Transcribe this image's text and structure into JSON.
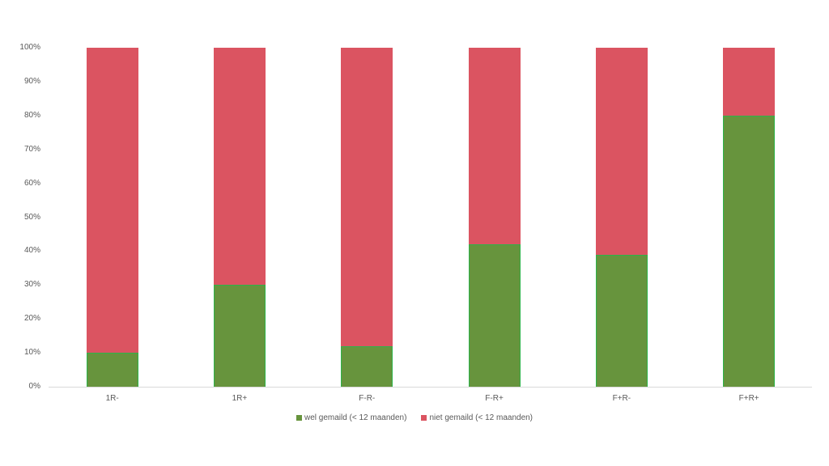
{
  "chart_data": {
    "type": "bar",
    "stacked": true,
    "percent_stacked": true,
    "title": "",
    "xlabel": "",
    "ylabel": "",
    "ylim": [
      0,
      100
    ],
    "y_ticks": [
      "0%",
      "10%",
      "20%",
      "30%",
      "40%",
      "50%",
      "60%",
      "70%",
      "80%",
      "90%",
      "100%"
    ],
    "categories": [
      "1R-",
      "1R+",
      "F-R-",
      "F-R+",
      "F+R-",
      "F+R+"
    ],
    "series": [
      {
        "name": "wel gemaild (< 12 maanden)",
        "color": "#67943d",
        "values": [
          10,
          30,
          12,
          42,
          39,
          80
        ]
      },
      {
        "name": "niet gemaild (< 12 maanden)",
        "color": "#db5461",
        "values": [
          90,
          70,
          88,
          58,
          61,
          20
        ]
      }
    ],
    "grid": false,
    "legend_position": "bottom"
  },
  "legend": {
    "items": [
      {
        "label": "wel gemaild (< 12 maanden)",
        "color": "#67943d"
      },
      {
        "label": "niet gemaild (< 12 maanden)",
        "color": "#db5461"
      }
    ]
  }
}
